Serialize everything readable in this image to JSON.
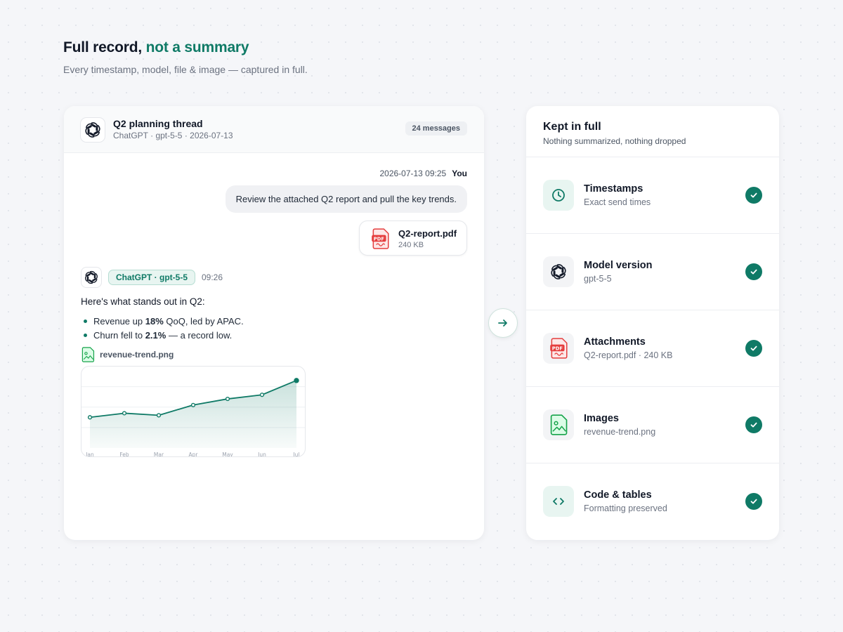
{
  "header": {
    "title_main": "Full record,",
    "title_accent": "not a summary",
    "subtitle": "Every timestamp, model, file & image — captured in full."
  },
  "chat": {
    "thread_title": "Q2 planning thread",
    "thread_meta": "ChatGPT · gpt-5-5 · 2026-07-13",
    "message_count": "24 messages",
    "user_timestamp": "2026-07-13 09:25",
    "user_label": "You",
    "user_message": "Review the attached Q2 report and pull the key trends.",
    "attachment_name": "Q2-report.pdf",
    "attachment_size": "240 KB",
    "bot_badge": "ChatGPT · gpt-5-5",
    "bot_time": "09:26",
    "bot_intro": "Here's what stands out in Q2:",
    "bullet1_pre": "Revenue up ",
    "bullet1_bold": "18%",
    "bullet1_post": " QoQ, led by APAC.",
    "bullet2_pre": "Churn fell to ",
    "bullet2_bold": "2.1%",
    "bullet2_post": " — a record low.",
    "image_name": "revenue-trend.png"
  },
  "chart_data": {
    "type": "area",
    "categories": [
      "Jan",
      "Feb",
      "Mar",
      "Apr",
      "May",
      "Jun",
      "Jul"
    ],
    "values": [
      30,
      34,
      32,
      42,
      48,
      52,
      66
    ],
    "ylim": [
      0,
      70
    ],
    "grid": true
  },
  "kept": {
    "title": "Kept in full",
    "subtitle": "Nothing summarized, nothing dropped",
    "items": [
      {
        "label": "Timestamps",
        "desc": "Exact send times",
        "icon": "clock-icon"
      },
      {
        "label": "Model version",
        "desc": "gpt-5-5",
        "icon": "openai-logo-icon"
      },
      {
        "label": "Attachments",
        "desc": "Q2-report.pdf · 240 KB",
        "icon": "pdf-icon"
      },
      {
        "label": "Images",
        "desc": "revenue-trend.png",
        "icon": "image-icon"
      },
      {
        "label": "Code & tables",
        "desc": "Formatting preserved",
        "icon": "code-icon"
      }
    ]
  },
  "colors": {
    "accent": "#0f7a66",
    "pdf_red": "#e53e3e",
    "image_green": "#16a34a"
  }
}
